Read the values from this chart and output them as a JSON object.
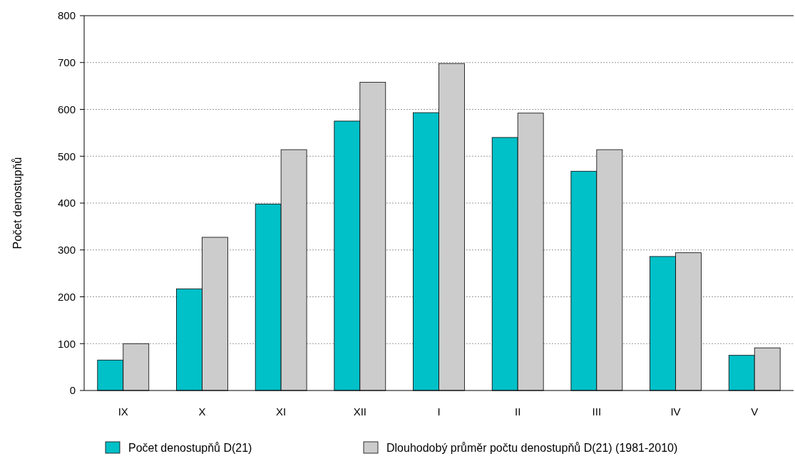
{
  "chart_data": {
    "type": "bar",
    "ylabel": "Počet denostupňů",
    "categories": [
      "IX",
      "X",
      "XI",
      "XII",
      "I",
      "II",
      "III",
      "IV",
      "V"
    ],
    "series": [
      {
        "name": "Počet denostupňů D(21)",
        "color": "#00c0c8",
        "values": [
          65,
          217,
          398,
          575,
          593,
          540,
          468,
          286,
          75
        ]
      },
      {
        "name": "Dlouhodobý průměr počtu denostupňů D(21) (1981-2010)",
        "color": "#cccccc",
        "values": [
          100,
          327,
          514,
          658,
          698,
          592,
          514,
          294,
          91
        ]
      }
    ],
    "ylim": [
      0,
      800
    ],
    "yticks": [
      0,
      100,
      200,
      300,
      400,
      500,
      600,
      700,
      800
    ],
    "grid": "y",
    "legend": "bottom"
  }
}
